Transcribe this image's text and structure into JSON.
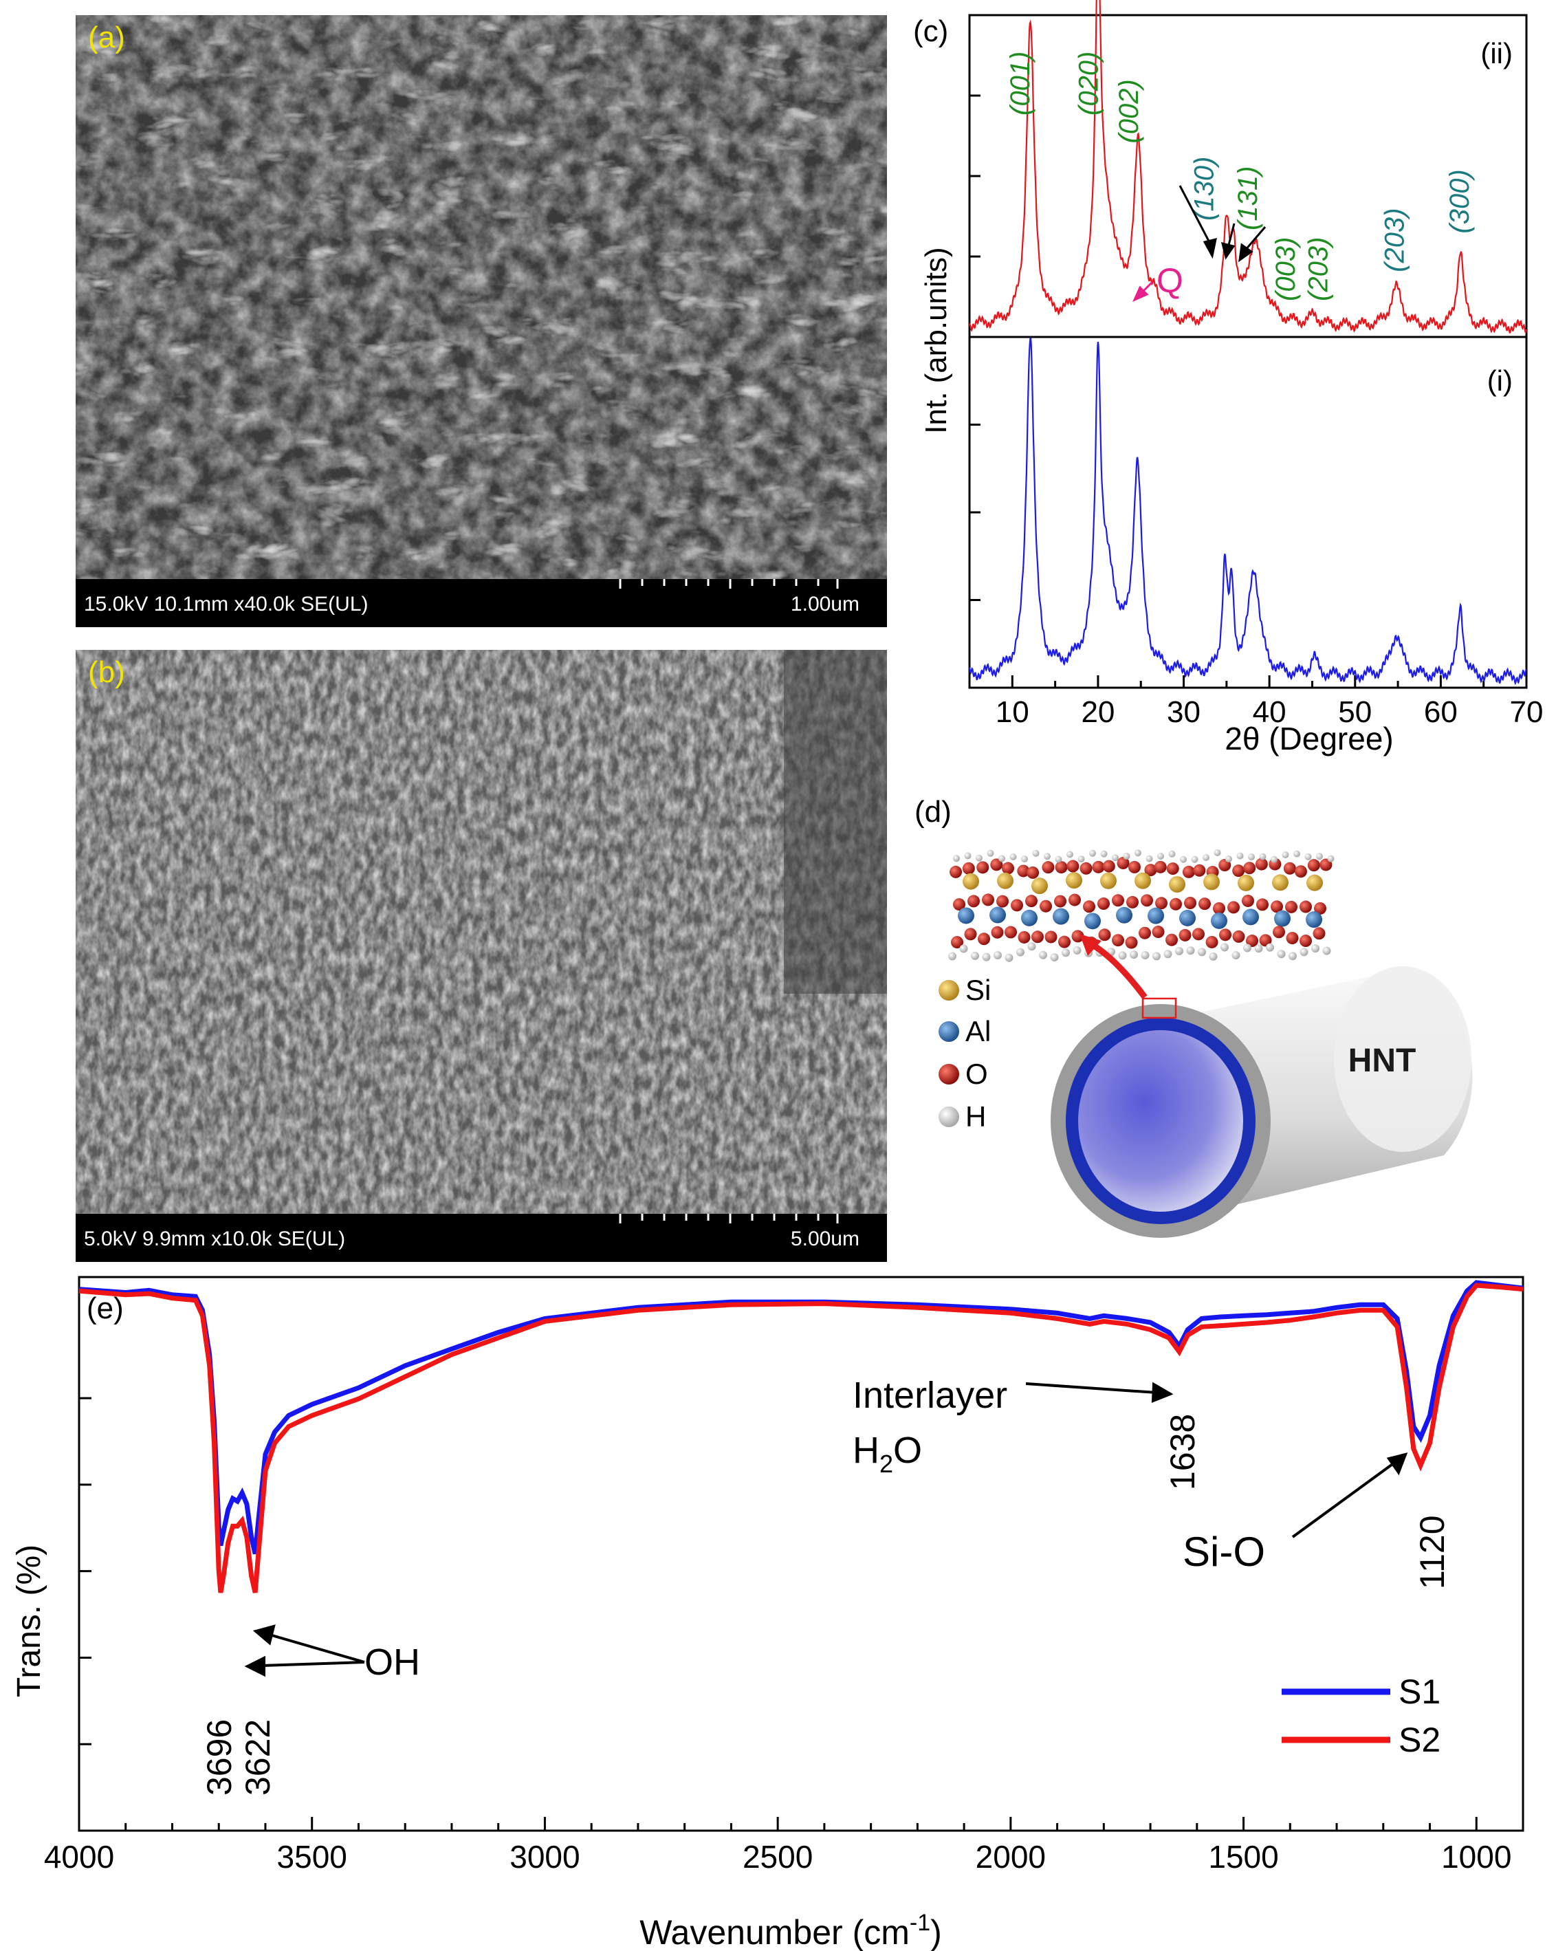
{
  "panels": {
    "a": {
      "label": "(a)",
      "info": "15.0kV 10.1mm x40.0k SE(UL)",
      "scale": "1.00um"
    },
    "b": {
      "label": "(b)",
      "info": "5.0kV 9.9mm x10.0k SE(UL)",
      "scale": "5.00um"
    },
    "d": {
      "label": "(d)",
      "legend": [
        {
          "symbol": "Si",
          "color": "#d9a628"
        },
        {
          "symbol": "Al",
          "color": "#3a72b8"
        },
        {
          "symbol": "O",
          "color": "#b4150f"
        },
        {
          "symbol": "H",
          "color": "#cfcfcf"
        }
      ],
      "tube_label": "HNT"
    }
  },
  "chart_data": [
    {
      "id": "xrd",
      "panel_label": "(c)",
      "type": "line",
      "xlabel": "2θ (Degree)",
      "ylabel": "Int. (arb.units)",
      "xlim": [
        5,
        70
      ],
      "xticks": [
        10,
        20,
        30,
        40,
        50,
        60,
        70
      ],
      "series": [
        {
          "subpanel": "(ii)",
          "color": "#e3161c",
          "peaks": [
            {
              "x": 12.1,
              "h": 0.93,
              "w": 0.55
            },
            {
              "x": 20.0,
              "h": 0.95,
              "w": 0.35
            },
            {
              "x": 20.8,
              "h": 0.35,
              "w": 1.6
            },
            {
              "x": 24.7,
              "h": 0.52,
              "w": 0.6
            },
            {
              "x": 26.7,
              "h": 0.05,
              "w": 0.6
            },
            {
              "x": 35.0,
              "h": 0.28,
              "w": 0.45
            },
            {
              "x": 35.8,
              "h": 0.2,
              "w": 0.35
            },
            {
              "x": 38.3,
              "h": 0.25,
              "w": 1.2
            },
            {
              "x": 45.2,
              "h": 0.03,
              "w": 0.6
            },
            {
              "x": 54.8,
              "h": 0.12,
              "w": 0.8
            },
            {
              "x": 62.3,
              "h": 0.24,
              "w": 0.45
            }
          ]
        },
        {
          "subpanel": "(i)",
          "color": "#1c1ce6",
          "peaks": [
            {
              "x": 12.1,
              "h": 0.97,
              "w": 0.55
            },
            {
              "x": 20.0,
              "h": 0.73,
              "w": 0.35
            },
            {
              "x": 20.9,
              "h": 0.3,
              "w": 1.6
            },
            {
              "x": 24.6,
              "h": 0.57,
              "w": 0.6
            },
            {
              "x": 34.8,
              "h": 0.3,
              "w": 0.35
            },
            {
              "x": 35.6,
              "h": 0.22,
              "w": 0.3
            },
            {
              "x": 38.2,
              "h": 0.3,
              "w": 0.8
            },
            {
              "x": 45.2,
              "h": 0.05,
              "w": 0.5
            },
            {
              "x": 54.8,
              "h": 0.12,
              "w": 0.8
            },
            {
              "x": 62.3,
              "h": 0.2,
              "w": 0.4
            }
          ]
        }
      ],
      "annotations": [
        {
          "text": "(001)",
          "x": 11.0,
          "color": "#1e8c1e"
        },
        {
          "text": "(020)",
          "x": 19.0,
          "color": "#1e8c1e"
        },
        {
          "text": "(002)",
          "x": 23.7,
          "color": "#1e8c1e"
        },
        {
          "text": "(130)",
          "x": 32.5,
          "color": "#1b7a80"
        },
        {
          "text": "(131)",
          "x": 37.6,
          "color": "#1e8c1e"
        },
        {
          "text": "(003)",
          "x": 42.0,
          "color": "#1e8c1e"
        },
        {
          "text": "(203)",
          "x": 45.8,
          "color": "#1e8c1e"
        },
        {
          "text": "(203)",
          "x": 54.7,
          "color": "#1b7a80"
        },
        {
          "text": "(300)",
          "x": 62.3,
          "color": "#1b7a80"
        }
      ],
      "q_label": "Q"
    },
    {
      "id": "ftir",
      "panel_label": "(e)",
      "type": "line",
      "xlabel": "Wavenumber (cm-1)",
      "xlabel_main": "Wavenumber (cm",
      "xlabel_sup": "-1",
      "xlabel_end": ")",
      "ylabel": "Trans. (%)",
      "xlim": [
        4000,
        900
      ],
      "xticks": [
        4000,
        3500,
        3000,
        2500,
        2000,
        1500,
        1000
      ],
      "ylim": [
        0,
        1
      ],
      "series": [
        {
          "name": "S1",
          "color": "#1616f0",
          "points": [
            [
              4000,
              0.978
            ],
            [
              3900,
              0.972
            ],
            [
              3850,
              0.976
            ],
            [
              3800,
              0.968
            ],
            [
              3750,
              0.965
            ],
            [
              3735,
              0.94
            ],
            [
              3720,
              0.86
            ],
            [
              3710,
              0.74
            ],
            [
              3700,
              0.55
            ],
            [
              3696,
              0.515
            ],
            [
              3690,
              0.54
            ],
            [
              3680,
              0.58
            ],
            [
              3670,
              0.6
            ],
            [
              3660,
              0.595
            ],
            [
              3650,
              0.61
            ],
            [
              3640,
              0.59
            ],
            [
              3630,
              0.53
            ],
            [
              3622,
              0.5
            ],
            [
              3615,
              0.56
            ],
            [
              3600,
              0.68
            ],
            [
              3580,
              0.72
            ],
            [
              3550,
              0.75
            ],
            [
              3500,
              0.77
            ],
            [
              3400,
              0.8
            ],
            [
              3300,
              0.84
            ],
            [
              3200,
              0.87
            ],
            [
              3100,
              0.9
            ],
            [
              3000,
              0.925
            ],
            [
              2800,
              0.945
            ],
            [
              2600,
              0.955
            ],
            [
              2400,
              0.955
            ],
            [
              2200,
              0.95
            ],
            [
              2000,
              0.942
            ],
            [
              1900,
              0.935
            ],
            [
              1830,
              0.925
            ],
            [
              1800,
              0.93
            ],
            [
              1750,
              0.925
            ],
            [
              1700,
              0.918
            ],
            [
              1660,
              0.9
            ],
            [
              1638,
              0.875
            ],
            [
              1620,
              0.905
            ],
            [
              1590,
              0.925
            ],
            [
              1550,
              0.928
            ],
            [
              1500,
              0.93
            ],
            [
              1450,
              0.932
            ],
            [
              1400,
              0.935
            ],
            [
              1350,
              0.938
            ],
            [
              1300,
              0.945
            ],
            [
              1250,
              0.95
            ],
            [
              1200,
              0.95
            ],
            [
              1170,
              0.925
            ],
            [
              1150,
              0.83
            ],
            [
              1135,
              0.73
            ],
            [
              1120,
              0.71
            ],
            [
              1100,
              0.75
            ],
            [
              1080,
              0.84
            ],
            [
              1050,
              0.93
            ],
            [
              1020,
              0.975
            ],
            [
              1000,
              0.99
            ],
            [
              950,
              0.985
            ],
            [
              900,
              0.98
            ]
          ]
        },
        {
          "name": "S2",
          "color": "#f01616",
          "points": [
            [
              4000,
              0.975
            ],
            [
              3900,
              0.968
            ],
            [
              3850,
              0.97
            ],
            [
              3800,
              0.962
            ],
            [
              3750,
              0.958
            ],
            [
              3735,
              0.93
            ],
            [
              3720,
              0.84
            ],
            [
              3710,
              0.7
            ],
            [
              3700,
              0.47
            ],
            [
              3696,
              0.43
            ],
            [
              3690,
              0.46
            ],
            [
              3680,
              0.52
            ],
            [
              3670,
              0.55
            ],
            [
              3660,
              0.55
            ],
            [
              3650,
              0.56
            ],
            [
              3640,
              0.53
            ],
            [
              3630,
              0.46
            ],
            [
              3622,
              0.43
            ],
            [
              3615,
              0.5
            ],
            [
              3600,
              0.65
            ],
            [
              3580,
              0.7
            ],
            [
              3550,
              0.73
            ],
            [
              3500,
              0.75
            ],
            [
              3400,
              0.78
            ],
            [
              3300,
              0.82
            ],
            [
              3200,
              0.86
            ],
            [
              3100,
              0.89
            ],
            [
              3000,
              0.92
            ],
            [
              2800,
              0.94
            ],
            [
              2600,
              0.95
            ],
            [
              2400,
              0.952
            ],
            [
              2200,
              0.945
            ],
            [
              2000,
              0.935
            ],
            [
              1900,
              0.925
            ],
            [
              1830,
              0.915
            ],
            [
              1800,
              0.92
            ],
            [
              1750,
              0.915
            ],
            [
              1700,
              0.905
            ],
            [
              1660,
              0.89
            ],
            [
              1638,
              0.865
            ],
            [
              1620,
              0.895
            ],
            [
              1590,
              0.91
            ],
            [
              1550,
              0.912
            ],
            [
              1500,
              0.915
            ],
            [
              1450,
              0.918
            ],
            [
              1400,
              0.922
            ],
            [
              1350,
              0.928
            ],
            [
              1300,
              0.935
            ],
            [
              1250,
              0.94
            ],
            [
              1200,
              0.94
            ],
            [
              1170,
              0.91
            ],
            [
              1150,
              0.8
            ],
            [
              1135,
              0.69
            ],
            [
              1120,
              0.66
            ],
            [
              1100,
              0.7
            ],
            [
              1080,
              0.8
            ],
            [
              1050,
              0.91
            ],
            [
              1020,
              0.965
            ],
            [
              1000,
              0.985
            ],
            [
              950,
              0.982
            ],
            [
              900,
              0.978
            ]
          ]
        }
      ],
      "annotations": {
        "oh": "OH",
        "oh_peaks": [
          "3696",
          "3622"
        ],
        "water_line1": "Interlayer",
        "water_line2_main": "H",
        "water_line2_sub": "2",
        "water_line2_end": "O",
        "water_peak": "1638",
        "sio": "Si-O",
        "sio_peak": "1120"
      }
    }
  ]
}
